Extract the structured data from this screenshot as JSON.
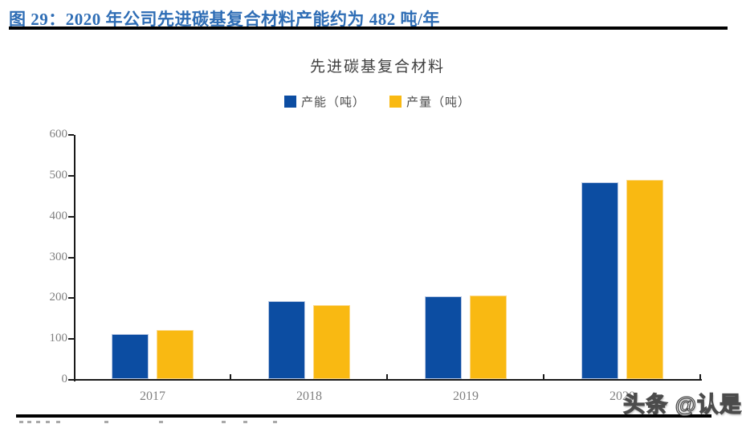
{
  "header": {
    "title": "图 29：2020 年公司先进碳基复合材料产能约为 482 吨/年",
    "accent_color": "#2E6DB5"
  },
  "watermark": {
    "text": "头条 @认是"
  },
  "chart_data": {
    "type": "bar",
    "title": "先进碳基复合材料",
    "categories": [
      "2017",
      "2018",
      "2019",
      "2020"
    ],
    "series": [
      {
        "name": "产能（吨）",
        "color": "#0C4DA2",
        "values": [
          110,
          190,
          203,
          482
        ]
      },
      {
        "name": "产量（吨）",
        "color": "#F9B912",
        "values": [
          120,
          180,
          204,
          488
        ]
      }
    ],
    "ylabel": "",
    "xlabel": "",
    "ylim": [
      0,
      600
    ],
    "ytick_step": 100,
    "grid": false,
    "legend_position": "top-center",
    "axis_text_color": "#7F7F7F",
    "title_text_color": "#404040"
  }
}
